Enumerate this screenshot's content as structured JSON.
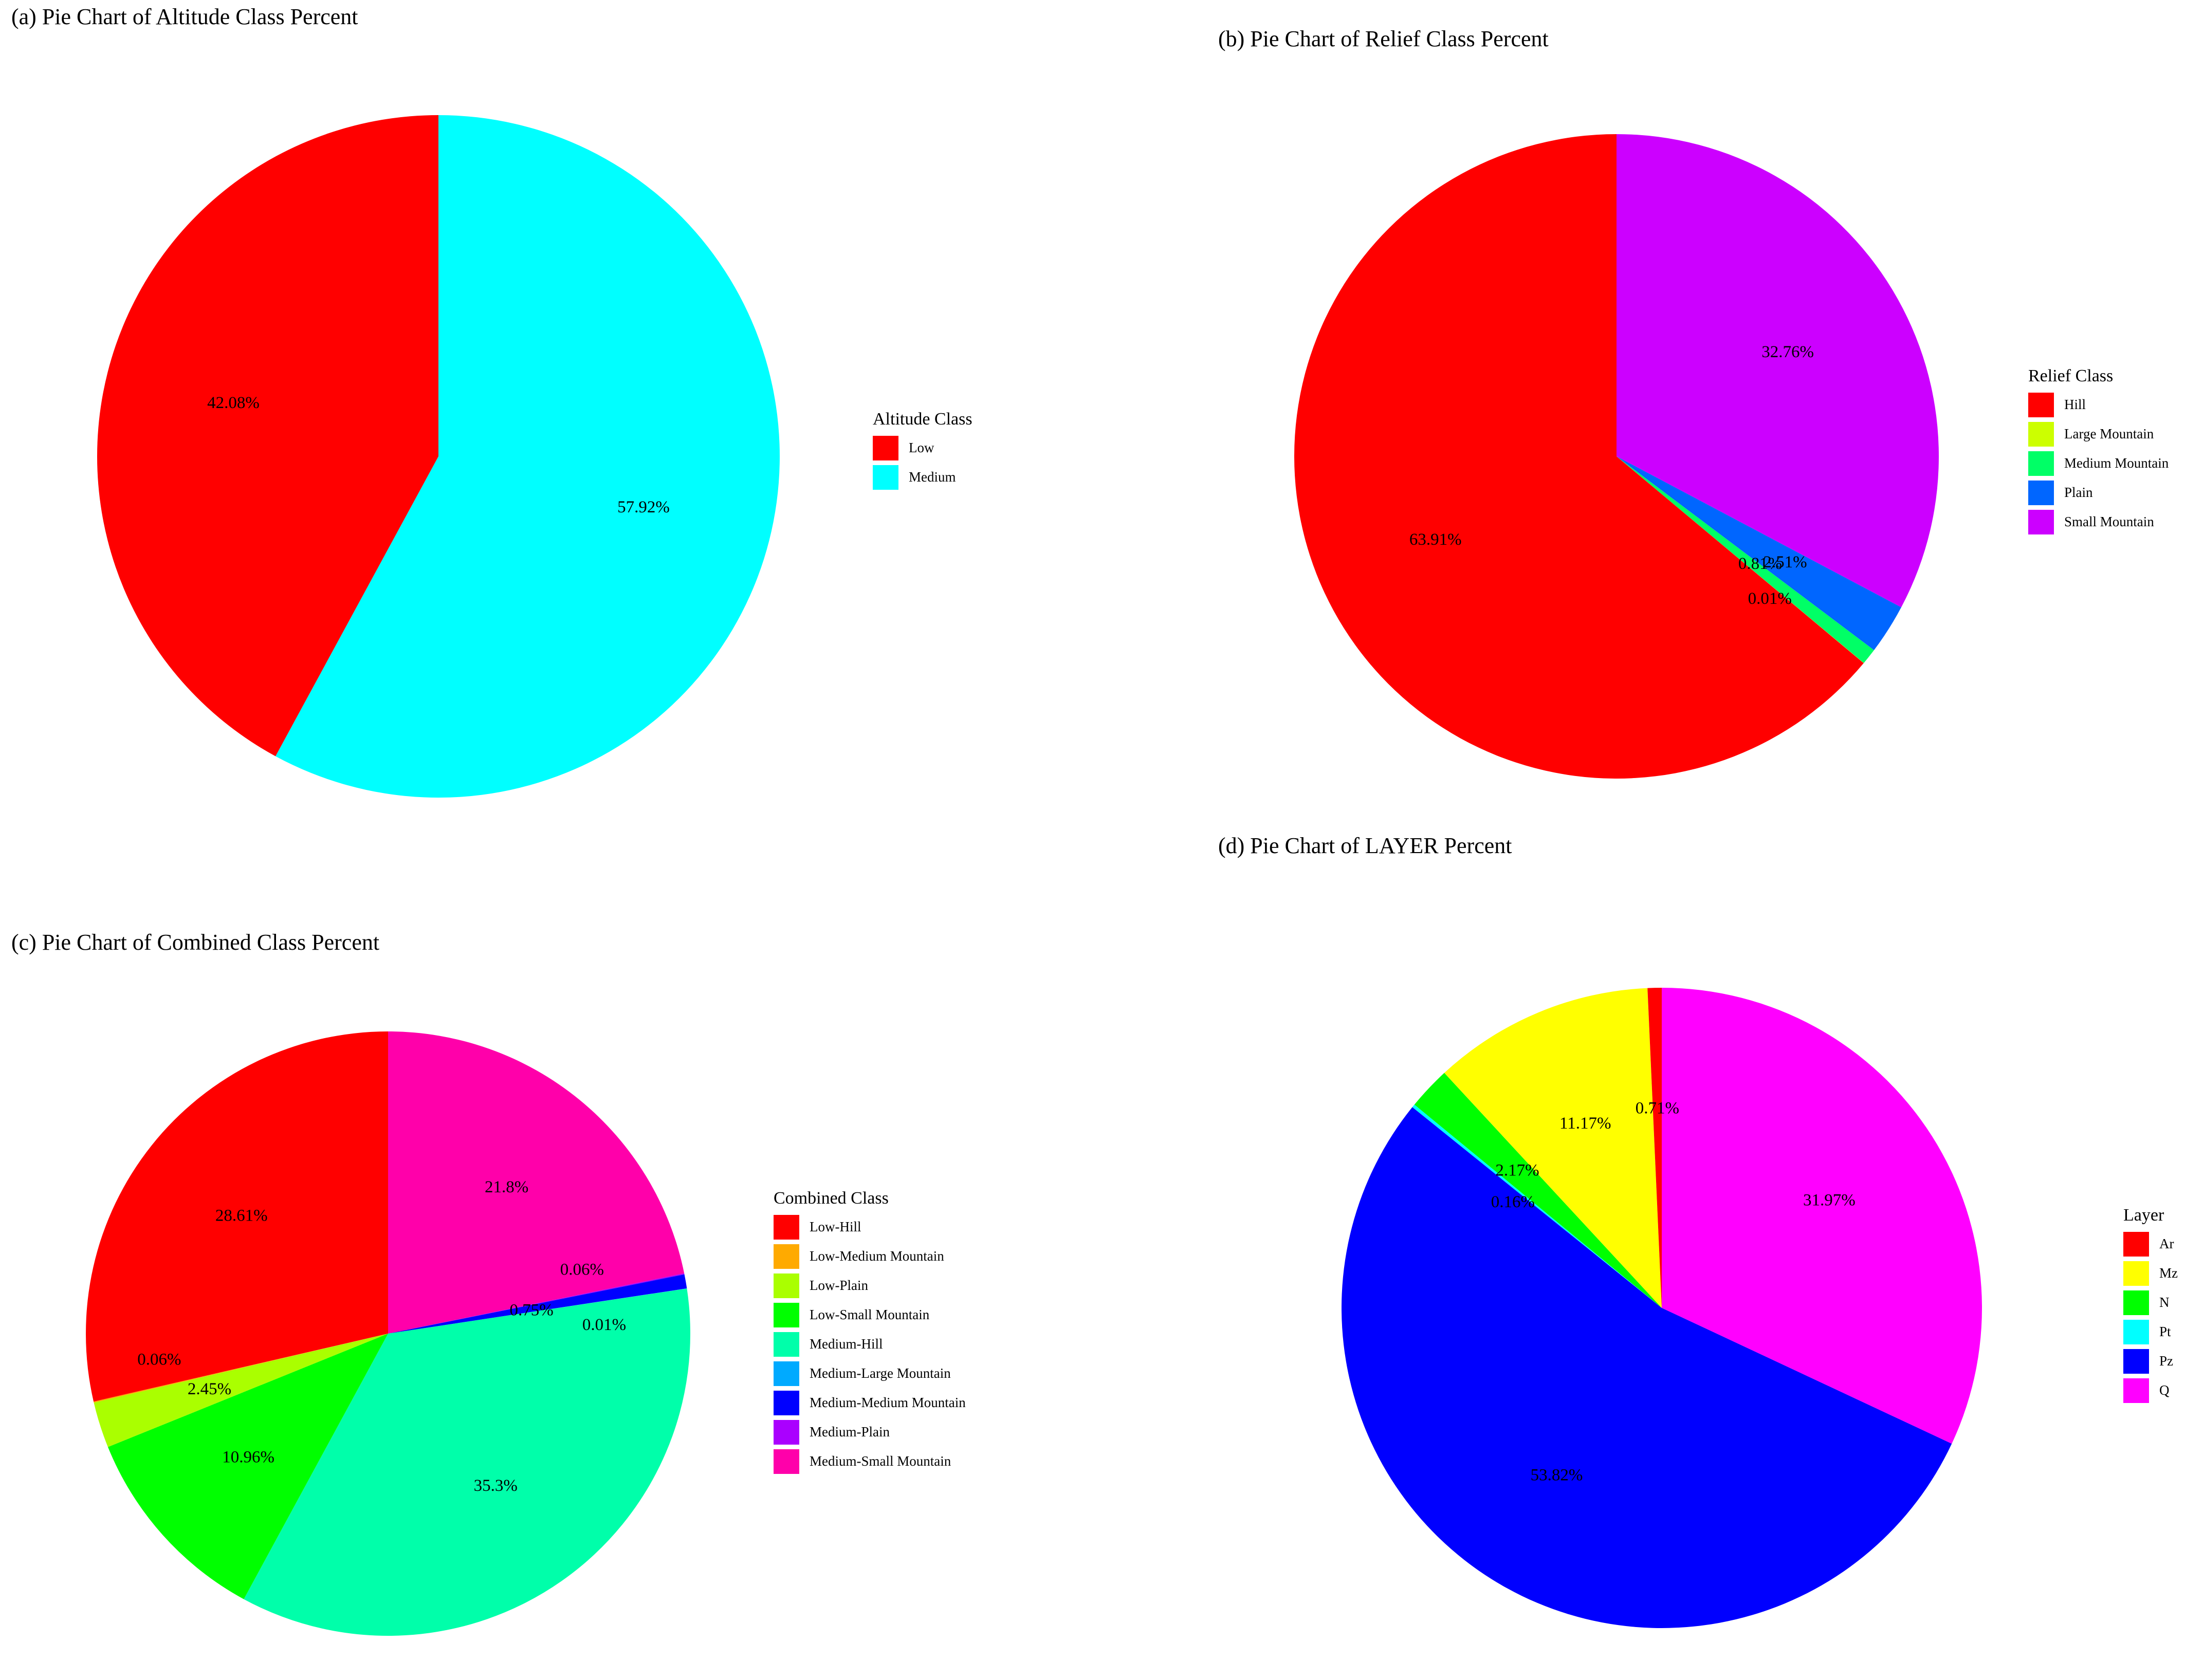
{
  "chart_data": [
    {
      "type": "pie",
      "title": "(a) Pie Chart of Altitude Class Percent",
      "legend_title": "Altitude Class",
      "legend_placement": "right",
      "slices": [
        {
          "label": "Low",
          "value": 42.08,
          "text": "42.08%",
          "color": "#ff0000"
        },
        {
          "label": "Medium",
          "value": 57.92,
          "text": "57.92%",
          "color": "#00ffff"
        }
      ]
    },
    {
      "type": "pie",
      "title": "(b) Pie Chart of Relief Class Percent",
      "legend_title": "Relief Class",
      "legend_placement": "right",
      "slices": [
        {
          "label": "Hill",
          "value": 63.91,
          "text": "63.91%",
          "color": "#ff0000"
        },
        {
          "label": "Large Mountain",
          "value": 0.01,
          "text": "0.01%",
          "color": "#ccff00"
        },
        {
          "label": "Medium Mountain",
          "value": 0.81,
          "text": "0.81%",
          "color": "#00ff66"
        },
        {
          "label": "Plain",
          "value": 2.51,
          "text": "2.51%",
          "color": "#0066ff"
        },
        {
          "label": "Small Mountain",
          "value": 32.76,
          "text": "32.76%",
          "color": "#cc00ff"
        }
      ]
    },
    {
      "type": "pie",
      "title": "(c) Pie Chart of Combined Class Percent",
      "legend_title": "Combined Class",
      "legend_placement": "right",
      "slices": [
        {
          "label": "Low-Hill",
          "value": 28.61,
          "text": "28.61%",
          "color": "#ff0000"
        },
        {
          "label": "Low-Medium Mountain",
          "value": 0.06,
          "text": "0.06%",
          "color": "#ffaa00"
        },
        {
          "label": "Low-Plain",
          "value": 2.45,
          "text": "2.45%",
          "color": "#aaff00"
        },
        {
          "label": "Low-Small Mountain",
          "value": 10.96,
          "text": "10.96%",
          "color": "#00ff00"
        },
        {
          "label": "Medium-Hill",
          "value": 35.3,
          "text": "35.3%",
          "color": "#00ffaa"
        },
        {
          "label": "Medium-Large Mountain",
          "value": 0.01,
          "text": "0.01%",
          "color": "#00aaff"
        },
        {
          "label": "Medium-Medium Mountain",
          "value": 0.75,
          "text": "0.75%",
          "color": "#0000ff"
        },
        {
          "label": "Medium-Plain",
          "value": 0.06,
          "text": "0.06%",
          "color": "#aa00ff"
        },
        {
          "label": "Medium-Small Mountain",
          "value": 21.8,
          "text": "21.8%",
          "color": "#ff00aa"
        }
      ]
    },
    {
      "type": "pie",
      "title": "(d) Pie Chart of LAYER Percent",
      "legend_title": "Layer",
      "legend_placement": "right",
      "slices": [
        {
          "label": "Ar",
          "value": 0.71,
          "text": "0.71%",
          "color": "#ff0000"
        },
        {
          "label": "Mz",
          "value": 11.17,
          "text": "11.17%",
          "color": "#ffff00"
        },
        {
          "label": "N",
          "value": 2.17,
          "text": "2.17%",
          "color": "#00ff00"
        },
        {
          "label": "Pt",
          "value": 0.16,
          "text": "0.16%",
          "color": "#00ffff"
        },
        {
          "label": "Pz",
          "value": 53.82,
          "text": "53.82%",
          "color": "#0000ff"
        },
        {
          "label": "Q",
          "value": 31.97,
          "text": "31.97%",
          "color": "#ff00ff"
        }
      ]
    }
  ]
}
